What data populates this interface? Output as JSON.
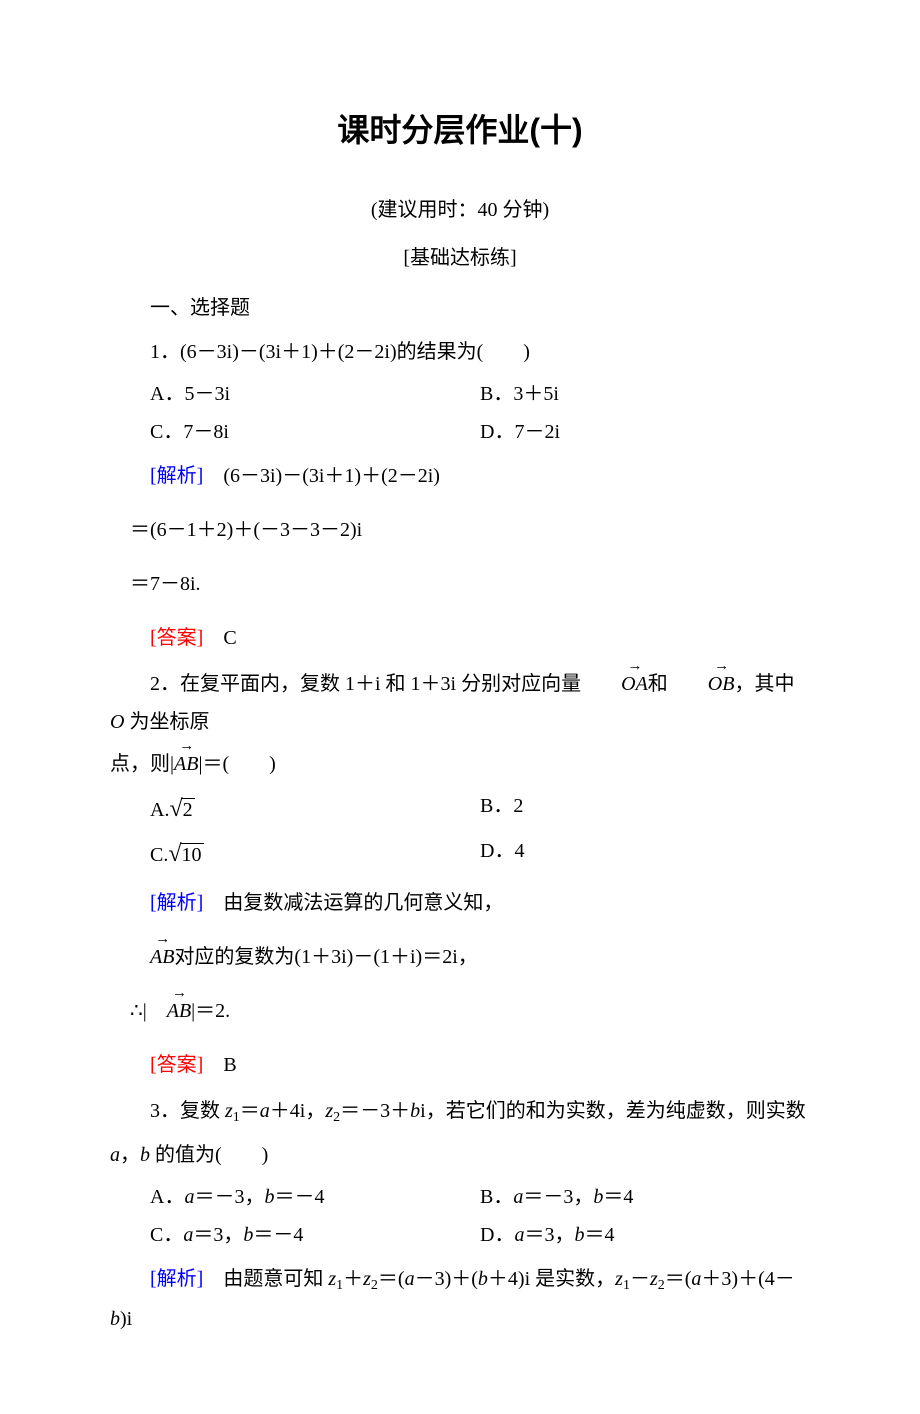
{
  "title": "课时分层作业(十)",
  "subtitle": "(建议用时：40 分钟)",
  "section_label": "[基础达标练]",
  "section_heading": "一、选择题",
  "colors": {
    "analysis_label": "#0000ff",
    "answer_label": "#ff0000",
    "text": "#000000",
    "background": "#ffffff"
  },
  "typography": {
    "title_fontsize": 32,
    "body_fontsize": 20,
    "line_height": 1.9,
    "title_font": "SimHei",
    "body_font": "SimSun",
    "analysis_font": "KaiTi"
  },
  "q1": {
    "stem": "1．(6－3i)－(3i＋1)＋(2－2i)的结果为(　　)",
    "options": {
      "A": "A．5－3i",
      "B": "B．3＋5i",
      "C": "C．7－8i",
      "D": "D．7－2i"
    },
    "analysis_label": "[解析]",
    "analysis_line1": "　(6－3i)－(3i＋1)＋(2－2i)",
    "analysis_line2": "＝(6－1＋2)＋(－3－3－2)i",
    "analysis_line3": "＝7－8i.",
    "answer_label": "[答案]",
    "answer": "　C"
  },
  "q2": {
    "stem_part1": "2．在复平面内，复数 1＋i 和 1＋3i 分别对应向量",
    "vec1": "OA",
    "stem_mid": "和",
    "vec2": "OB",
    "stem_part2": "，其中 ",
    "stem_O": "O",
    "stem_part3": " 为坐标原",
    "stem_cont1": "点，则|",
    "vec3": "AB",
    "stem_cont2": "|＝(　　)",
    "options": {
      "A_prefix": "A.",
      "A_val": "2",
      "B": "B．2",
      "C_prefix": "C.",
      "C_val": "10",
      "D": "D．4"
    },
    "analysis_label": "[解析]",
    "analysis_line1": "　由复数减法运算的几何意义知，",
    "analysis_vec": "AB",
    "analysis_line2": "对应的复数为(1＋3i)－(1＋i)＝2i，",
    "analysis_therefore": "∴|",
    "analysis_vec2": "AB",
    "analysis_line3": "|＝2.",
    "answer_label": "[答案]",
    "answer": "　B"
  },
  "q3": {
    "stem_part1": "3．复数 ",
    "z1": "z",
    "sub1": "1",
    "eq1": "＝",
    "a": "a",
    "plus4i": "＋4i，",
    "z2": "z",
    "sub2": "2",
    "eq2": "＝－3＋",
    "b": "b",
    "stem_part2": "i，若它们的和为实数，差为纯虚数，则实数",
    "stem_cont": "，",
    "stem_cont2": " 的值为(　　)",
    "a_var": "a",
    "b_var": "b",
    "options": {
      "A_prefix": "A．",
      "A_a": "a",
      "A_mid": "＝－3，",
      "A_b": "b",
      "A_end": "＝－4",
      "B_prefix": "B．",
      "B_a": "a",
      "B_mid": "＝－3，",
      "B_b": "b",
      "B_end": "＝4",
      "C_prefix": "C．",
      "C_a": "a",
      "C_mid": "＝3，",
      "C_b": "b",
      "C_end": "＝－4",
      "D_prefix": "D．",
      "D_a": "a",
      "D_mid": "＝3，",
      "D_b": "b",
      "D_end": "＝4"
    },
    "analysis_label": "[解析]",
    "analysis_part1": "　由题意可知 ",
    "az1": "z",
    "asub1": "1",
    "aplus": "＋",
    "az2": "z",
    "asub2": "2",
    "aeq": "＝(",
    "aa": "a",
    "amid1": "－3)＋(",
    "ab": "b",
    "amid2": "＋4)i 是实数，",
    "az1b": "z",
    "asub1b": "1",
    "aminus": "－",
    "az2b": "z",
    "asub2b": "2",
    "aeq2": "＝(",
    "aa2": "a",
    "amid3": "＋3)＋(4－",
    "ab2": "b",
    "aend": ")i"
  }
}
